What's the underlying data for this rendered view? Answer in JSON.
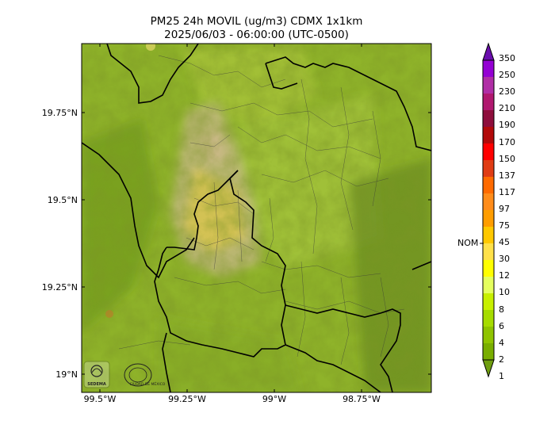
{
  "title": {
    "line1": "PM25 24h MOVIL (ug/m3) CDMX 1x1km",
    "line2": "2025/06/03 - 06:00:00 (UTC-0500)"
  },
  "axes": {
    "y_ticks": [
      "19.75°N",
      "19.5°N",
      "19.25°N",
      "19°N"
    ],
    "x_ticks": [
      "99.5°W",
      "99.25°W",
      "99°W",
      "98.75°W"
    ]
  },
  "colorbar": {
    "labels": [
      "350",
      "250",
      "230",
      "210",
      "190",
      "170",
      "150",
      "137",
      "117",
      "97",
      "75",
      "45",
      "30",
      "12",
      "10",
      "8",
      "6",
      "4",
      "2",
      "1"
    ],
    "colors": [
      "#6a0dad",
      "#9400d3",
      "#b02ea6",
      "#b0186f",
      "#8e0e3c",
      "#b20a0a",
      "#ff0000",
      "#e03c14",
      "#ff6a00",
      "#ff8c1a",
      "#ff9d00",
      "#ffc800",
      "#ffe14a",
      "#ffff00",
      "#e5ff5e",
      "#c8f000",
      "#a6dc00",
      "#8fc400",
      "#79ae00",
      "#6f9e10"
    ],
    "marker_label": "NOM"
  },
  "logos": [
    "SEDEMA",
    "CIUDAD DE MÉXICO"
  ]
}
